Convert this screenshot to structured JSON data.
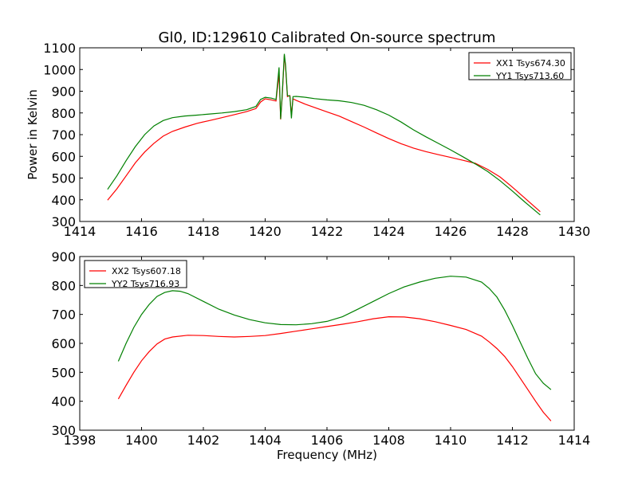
{
  "chart_data": [
    {
      "type": "line",
      "title": "Gl0, ID:129610 Calibrated On-source spectrum",
      "xlabel": "",
      "ylabel": "Power in Kelvin",
      "xlim": [
        1414,
        1430
      ],
      "ylim": [
        300,
        1100
      ],
      "xticks": [
        "1414",
        "1416",
        "1418",
        "1420",
        "1422",
        "1424",
        "1426",
        "1428",
        "1430"
      ],
      "yticks": [
        "300",
        "400",
        "500",
        "600",
        "700",
        "800",
        "900",
        "1000",
        "1100"
      ],
      "legend_position": "top-right",
      "series": [
        {
          "name": "XX1 Tsys674.30",
          "color": "#ff0000",
          "x": [
            1414.9,
            1415.2,
            1415.5,
            1415.8,
            1416.1,
            1416.4,
            1416.7,
            1417.0,
            1417.4,
            1417.8,
            1418.2,
            1418.6,
            1419.0,
            1419.4,
            1419.7,
            1419.85,
            1420.0,
            1420.2,
            1420.35,
            1420.45,
            1420.5,
            1420.55,
            1420.62,
            1420.66,
            1420.72,
            1420.8,
            1420.85,
            1420.9,
            1421.0,
            1421.3,
            1421.6,
            1422.0,
            1422.4,
            1422.8,
            1423.2,
            1423.6,
            1424.0,
            1424.4,
            1424.8,
            1425.2,
            1425.6,
            1426.0,
            1426.4,
            1426.8,
            1427.2,
            1427.6,
            1428.0,
            1428.4,
            1428.9
          ],
          "y": [
            398,
            450,
            510,
            570,
            620,
            660,
            693,
            715,
            735,
            752,
            765,
            778,
            792,
            806,
            820,
            850,
            865,
            860,
            855,
            980,
            770,
            870,
            1065,
            1010,
            875,
            880,
            790,
            865,
            858,
            840,
            825,
            805,
            785,
            760,
            735,
            708,
            682,
            658,
            638,
            622,
            608,
            595,
            582,
            568,
            540,
            505,
            458,
            408,
            345
          ]
        },
        {
          "name": "YY1 Tsys713.60",
          "color": "#008000",
          "x": [
            1414.9,
            1415.2,
            1415.5,
            1415.8,
            1416.1,
            1416.4,
            1416.7,
            1417.0,
            1417.4,
            1417.8,
            1418.2,
            1418.6,
            1419.0,
            1419.4,
            1419.7,
            1419.85,
            1420.0,
            1420.2,
            1420.35,
            1420.45,
            1420.5,
            1420.55,
            1420.62,
            1420.66,
            1420.72,
            1420.8,
            1420.85,
            1420.9,
            1421.0,
            1421.3,
            1421.6,
            1422.0,
            1422.4,
            1422.8,
            1423.2,
            1423.6,
            1424.0,
            1424.4,
            1424.8,
            1425.2,
            1425.6,
            1426.0,
            1426.4,
            1426.8,
            1427.2,
            1427.6,
            1428.0,
            1428.4,
            1428.9
          ],
          "y": [
            448,
            510,
            580,
            645,
            700,
            740,
            765,
            778,
            786,
            790,
            795,
            800,
            806,
            815,
            830,
            862,
            872,
            868,
            862,
            1010,
            772,
            880,
            1072,
            1020,
            880,
            878,
            775,
            875,
            876,
            872,
            866,
            860,
            856,
            848,
            835,
            815,
            790,
            758,
            722,
            690,
            660,
            630,
            598,
            565,
            530,
            488,
            440,
            390,
            330
          ]
        }
      ]
    },
    {
      "type": "line",
      "title": "",
      "xlabel": "Frequency (MHz)",
      "ylabel": "",
      "xlim": [
        1398,
        1414
      ],
      "ylim": [
        300,
        900
      ],
      "xticks": [
        "1398",
        "1400",
        "1402",
        "1404",
        "1406",
        "1408",
        "1410",
        "1412",
        "1414"
      ],
      "yticks": [
        "300",
        "400",
        "500",
        "600",
        "700",
        "800",
        "900"
      ],
      "legend_position": "top-left",
      "series": [
        {
          "name": "XX2 Tsys607.18",
          "color": "#ff0000",
          "x": [
            1399.25,
            1399.5,
            1399.75,
            1400.0,
            1400.25,
            1400.5,
            1400.75,
            1401.0,
            1401.5,
            1402.0,
            1402.5,
            1403.0,
            1403.5,
            1404.0,
            1404.5,
            1405.0,
            1405.5,
            1406.0,
            1406.5,
            1407.0,
            1407.5,
            1408.0,
            1408.5,
            1409.0,
            1409.5,
            1410.0,
            1410.5,
            1411.0,
            1411.25,
            1411.5,
            1411.75,
            1412.0,
            1412.25,
            1412.5,
            1412.75,
            1413.0,
            1413.25
          ],
          "y": [
            408,
            455,
            500,
            540,
            572,
            598,
            615,
            622,
            628,
            627,
            624,
            622,
            624,
            627,
            634,
            642,
            650,
            658,
            666,
            675,
            685,
            692,
            691,
            685,
            675,
            662,
            648,
            625,
            605,
            582,
            555,
            520,
            480,
            440,
            400,
            362,
            332
          ]
        },
        {
          "name": "YY2 Tsys716.93",
          "color": "#008000",
          "x": [
            1399.25,
            1399.5,
            1399.75,
            1400.0,
            1400.25,
            1400.5,
            1400.75,
            1401.0,
            1401.25,
            1401.5,
            1402.0,
            1402.5,
            1403.0,
            1403.5,
            1404.0,
            1404.5,
            1405.0,
            1405.5,
            1406.0,
            1406.5,
            1407.0,
            1407.5,
            1408.0,
            1408.5,
            1409.0,
            1409.5,
            1410.0,
            1410.5,
            1411.0,
            1411.25,
            1411.5,
            1411.75,
            1412.0,
            1412.25,
            1412.5,
            1412.75,
            1413.0,
            1413.25
          ],
          "y": [
            538,
            600,
            655,
            700,
            735,
            762,
            776,
            782,
            780,
            772,
            745,
            718,
            698,
            682,
            671,
            665,
            664,
            668,
            676,
            692,
            718,
            745,
            772,
            795,
            812,
            825,
            832,
            829,
            812,
            790,
            760,
            715,
            662,
            605,
            548,
            495,
            462,
            440
          ]
        }
      ]
    }
  ]
}
